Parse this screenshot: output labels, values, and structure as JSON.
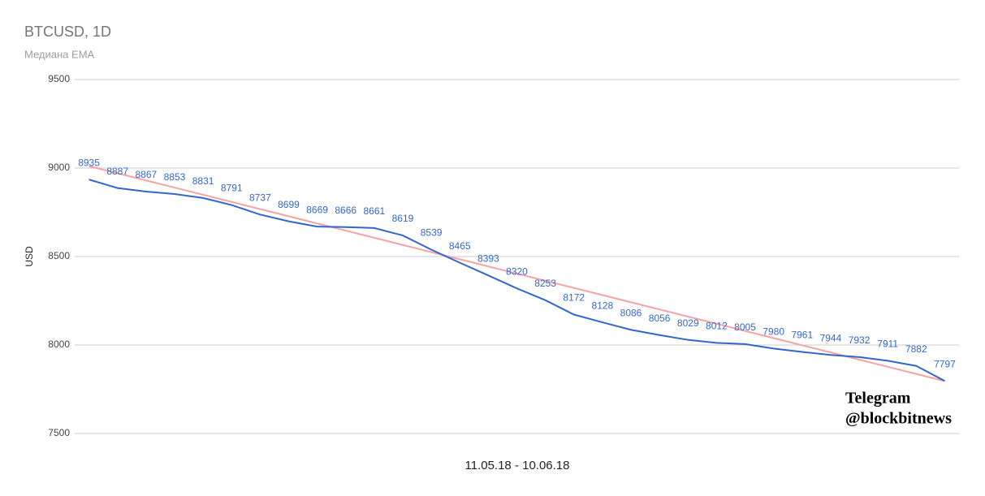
{
  "chart_data": {
    "type": "line",
    "title": "BTCUSD, 1D",
    "subtitle": "Медиана EMA",
    "x_label": "11.05.18 - 10.06.18",
    "y_label": "USD",
    "categories": [
      null,
      null,
      null,
      null,
      null,
      null,
      null,
      null,
      null,
      null,
      null,
      null,
      null,
      null,
      null,
      null,
      null,
      null,
      null,
      null,
      null,
      null,
      null,
      null,
      null,
      null,
      null,
      null,
      null,
      null,
      null
    ],
    "series": [
      {
        "color": "#3366cc",
        "data_labels": true,
        "values": [
          8935,
          8887,
          8867,
          8853,
          8831,
          8791,
          8737,
          8699,
          8669,
          8666,
          8661,
          8619,
          8539,
          8465,
          8393,
          8320,
          8253,
          8172,
          8128,
          8086,
          8056,
          8029,
          8012,
          8005,
          7980,
          7961,
          7944,
          7932,
          7911,
          7882,
          7797
        ]
      },
      {
        "color": "#f4a3a3",
        "data_labels": false,
        "values": [
          9011,
          8970.5,
          8930,
          8889.5,
          8849,
          8808.5,
          8768,
          8727.5,
          8687,
          8646.5,
          8606,
          8565.5,
          8525,
          8484.5,
          8444,
          8403.5,
          8363,
          8322.5,
          8282,
          8241.5,
          8201,
          8160.5,
          8120,
          8079.5,
          8039,
          7998.5,
          7958,
          7917.5,
          7877,
          7836.5,
          7796
        ]
      }
    ],
    "ylim": [
      7500,
      9500
    ],
    "yticks": [
      7500,
      8000,
      8500,
      9000,
      9500
    ],
    "grid": true,
    "watermark": [
      "Telegram",
      "@blockbitnews"
    ]
  }
}
